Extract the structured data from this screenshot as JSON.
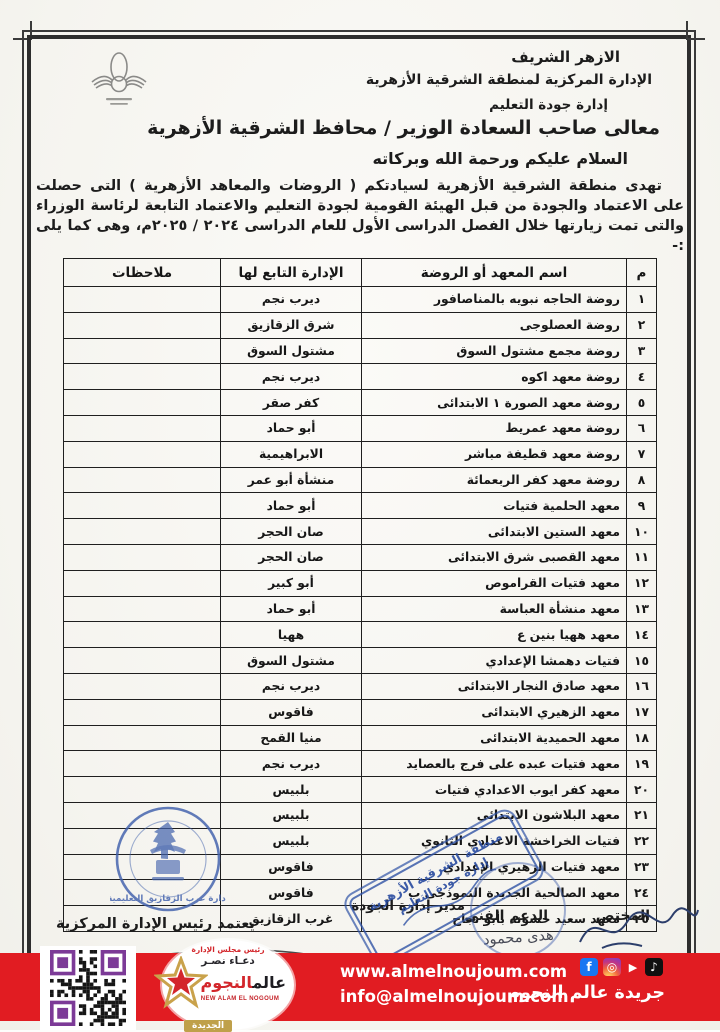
{
  "letterhead": {
    "org1": "الازهر الشريف",
    "org2": "الإدارة المركزية لمنطقة الشرقية الأزهرية",
    "org3": "إدارة جودة التعليم",
    "salutation": "معالى صاحب السعادة الوزير / محافظ الشرقية الأزهرية",
    "greeting": "السلام عليكم ورحمة الله وبركاته",
    "body": "تهدى منطقة الشرقية الأزهرية لسيادتكم ( الروضات والمعاهد الأزهرية ) التى حصلت على الاعتماد والجودة من قبل الهيئة القومية لجودة التعليم والاعتماد التابعة لرئاسة الوزراء والتى تمت زيارتها خلال الفصل الدراسى الأول للعام الدراسى ٢٠٢٤ / ٢٠٢٥م، وهى كما يلى :-"
  },
  "table": {
    "headers": {
      "num": "م",
      "name": "اسم المعهد أو الروضة",
      "admin": "الإدارة التابع لها",
      "notes": "ملاحظات"
    },
    "rows": [
      {
        "num": "١",
        "name": "روضة الحاجه نبويه بالمناصافور",
        "admin": "ديرب نجم",
        "notes": ""
      },
      {
        "num": "٢",
        "name": "روضة العصلوجى",
        "admin": "شرق الزقازيق",
        "notes": ""
      },
      {
        "num": "٣",
        "name": "روضة مجمع مشتول السوق",
        "admin": "مشتول السوق",
        "notes": ""
      },
      {
        "num": "٤",
        "name": "روضة معهد اكوه",
        "admin": "ديرب نجم",
        "notes": ""
      },
      {
        "num": "٥",
        "name": "روضة معهد الصورة ١ الابتدائى",
        "admin": "كفر صقر",
        "notes": ""
      },
      {
        "num": "٦",
        "name": "روضة معهد عمريط",
        "admin": "أبو حماد",
        "notes": ""
      },
      {
        "num": "٧",
        "name": "روضة معهد قطيفة مباشر",
        "admin": "الابراهيمية",
        "notes": ""
      },
      {
        "num": "٨",
        "name": "روضة معهد كفر الربعمائة",
        "admin": "منشأة أبو عمر",
        "notes": ""
      },
      {
        "num": "٩",
        "name": "معهد الحلمية فتيات",
        "admin": "أبو حماد",
        "notes": ""
      },
      {
        "num": "١٠",
        "name": "معهد الستين الابتدائى",
        "admin": "صان الحجر",
        "notes": ""
      },
      {
        "num": "١١",
        "name": "معهد القصبى شرق الابتدائى",
        "admin": "صان الحجر",
        "notes": ""
      },
      {
        "num": "١٢",
        "name": "معهد فتيات القراموص",
        "admin": "أبو كبير",
        "notes": ""
      },
      {
        "num": "١٣",
        "name": "معهد منشأة العباسة",
        "admin": "أبو حماد",
        "notes": ""
      },
      {
        "num": "١٤",
        "name": "معهد ههيا بنين ع",
        "admin": "ههيا",
        "notes": ""
      },
      {
        "num": "١٥",
        "name": "فتيات دهمشا الإعدادي",
        "admin": "مشتول السوق",
        "notes": ""
      },
      {
        "num": "١٦",
        "name": "معهد صادق النجار الابتدائى",
        "admin": "ديرب نجم",
        "notes": ""
      },
      {
        "num": "١٧",
        "name": "معهد الزهيري الابتدائى",
        "admin": "فاقوس",
        "notes": ""
      },
      {
        "num": "١٨",
        "name": "معهد الحميدية الابتدائى",
        "admin": "منيا القمح",
        "notes": ""
      },
      {
        "num": "١٩",
        "name": "معهد فتيات عبده على فرج بالعصايد",
        "admin": "ديرب نجم",
        "notes": ""
      },
      {
        "num": "٢٠",
        "name": "معهد كفر ايوب الاعدادي فتيات",
        "admin": "بلبيس",
        "notes": ""
      },
      {
        "num": "٢١",
        "name": "معهد البلاشون الابتدائى",
        "admin": "بلبيس",
        "notes": ""
      },
      {
        "num": "٢٢",
        "name": "فتيات الخراخشة الاعدادي الثانوي",
        "admin": "بلبيس",
        "notes": ""
      },
      {
        "num": "٢٣",
        "name": "معهد فتيات الزهيري الإعدادي",
        "admin": "فاقوس",
        "notes": ""
      },
      {
        "num": "٢٤",
        "name": "معهد الصالحية الجديدة النموذجى ب",
        "admin": "فاقوس",
        "notes": ""
      },
      {
        "num": "٢٥",
        "name": "معهد سعيد حسونه بأبو نجاح",
        "admin": "غرب الزقازيق",
        "notes": ""
      }
    ]
  },
  "signatures": {
    "specialist_label": "المختص",
    "support_label": "الدعم الفنى",
    "support_name": "هدى محمود",
    "quality_manager_label": "مدير إدارة الجودة",
    "approve_label": "يعتمد رئيس الإدارة المركزية"
  },
  "stamps": {
    "round_text": "إدارة غرب الزقازيق التعليمية",
    "rect_line1": "منطقة الشرقية الأزهرية",
    "rect_line2": "إدارة جودة التعليم"
  },
  "footer": {
    "website": "www.almelnoujoum.com",
    "email": "info@almelnoujoum.com",
    "paper_name": "جريدة عالم النجوم",
    "bar_color": "#e11c22",
    "logo": {
      "chairman_title": "رئيس مجلس الإدارة",
      "chairman_name": "دعـاء نصـر",
      "brand_ar1": "عالم",
      "brand_ar2": "النجوم",
      "brand_en": "NEW ALAM EL NOGOUM",
      "badge": "الجديدة"
    },
    "icons": {
      "facebook": "f",
      "instagram": "◎",
      "youtube": "▶",
      "tiktok": "♪"
    }
  }
}
